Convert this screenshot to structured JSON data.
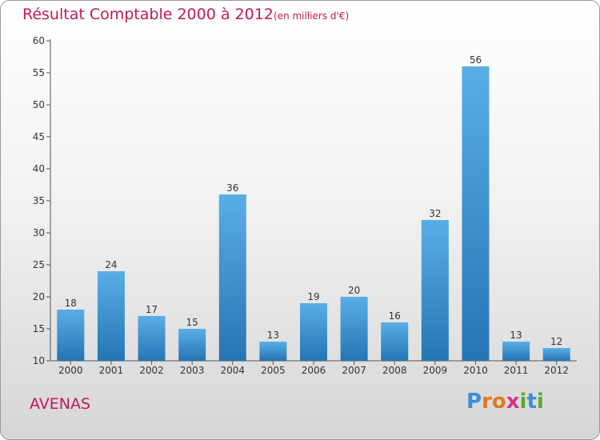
{
  "header": {
    "title": "Résultat Comptable 2000 à 2012",
    "subtitle": "(en milliers d'€)"
  },
  "footer": {
    "commune": "AVENAS",
    "logo_letters": [
      "P",
      "r",
      "o",
      "x",
      "i",
      "t",
      "i"
    ]
  },
  "colors": {
    "title": "#c2185b",
    "bar_top": "#5aaee6",
    "bar_bottom": "#2575b3",
    "logo": [
      "#3a8fd6",
      "#e07a1f",
      "#e07a1f",
      "#d6338a",
      "#5aa830",
      "#3a8fd6",
      "#5aa830"
    ]
  },
  "chart_data": {
    "type": "bar",
    "title": "Résultat Comptable 2000 à 2012",
    "subtitle": "(en milliers d'€)",
    "xlabel": "",
    "ylabel": "",
    "categories": [
      "2000",
      "2001",
      "2002",
      "2003",
      "2004",
      "2005",
      "2006",
      "2007",
      "2008",
      "2009",
      "2010",
      "2011",
      "2012"
    ],
    "values": [
      18,
      24,
      17,
      15,
      36,
      13,
      19,
      20,
      16,
      32,
      56,
      13,
      12
    ],
    "ylim": [
      10,
      60
    ],
    "yticks": [
      10,
      15,
      20,
      25,
      30,
      35,
      40,
      45,
      50,
      55,
      60
    ],
    "grid": false,
    "legend": "none"
  }
}
